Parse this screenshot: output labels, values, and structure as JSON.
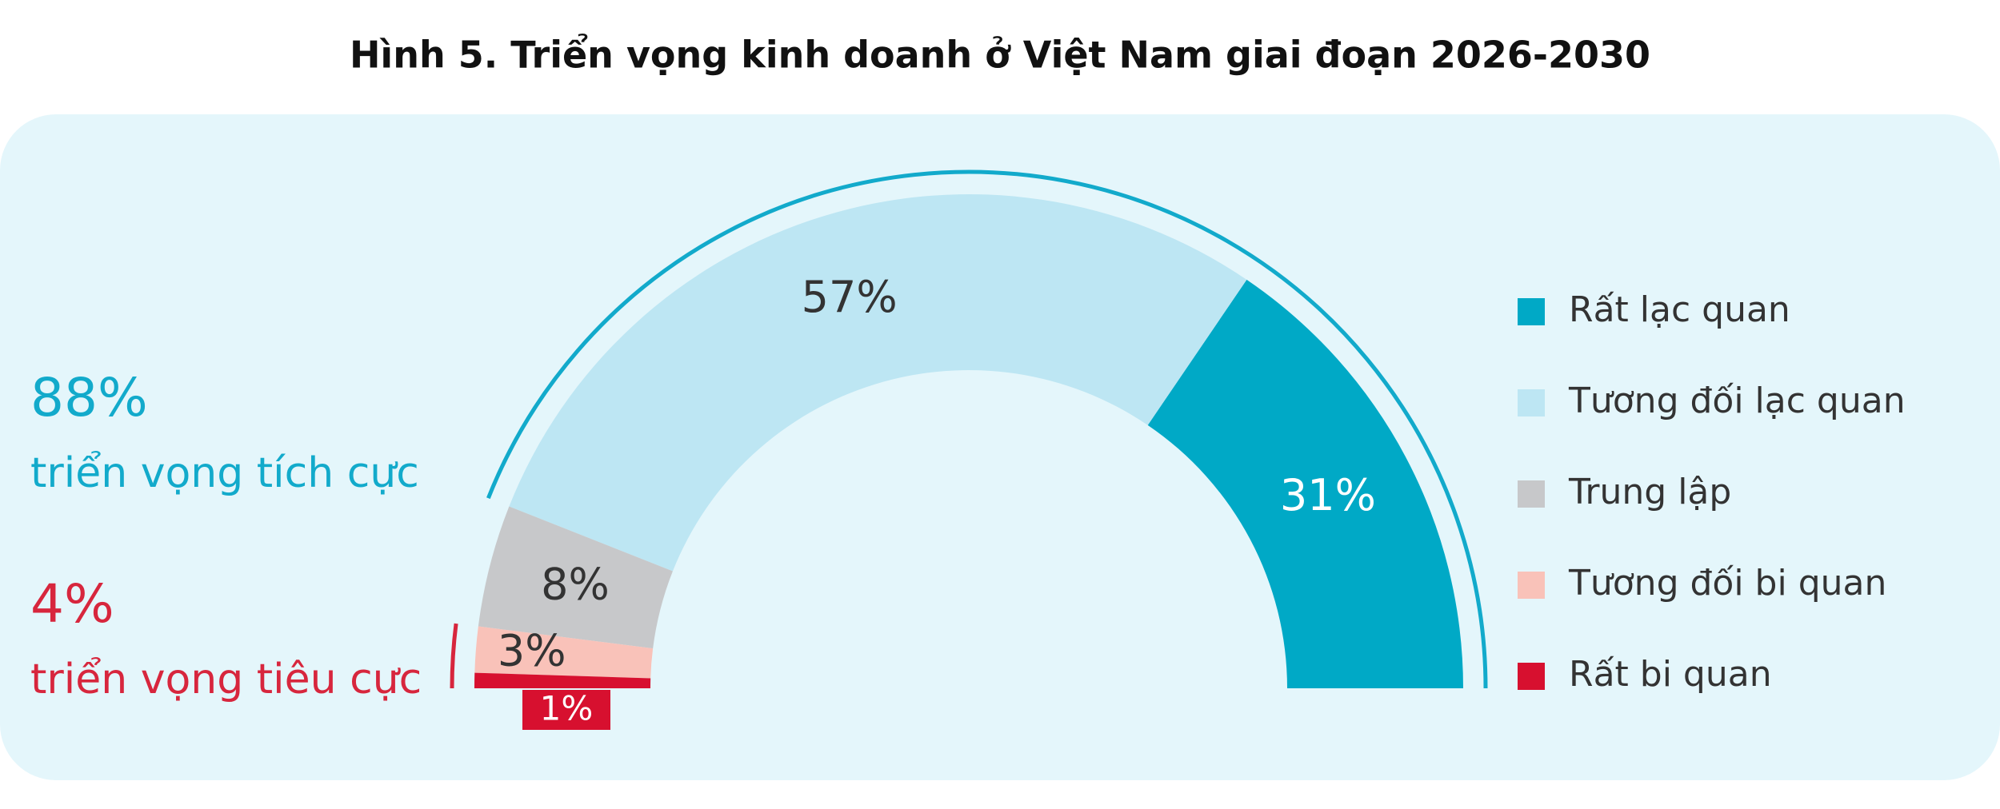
{
  "chart_data": {
    "type": "semi-donut",
    "title": "Hình 5. Triển vọng kinh doanh ở Việt Nam giai đoạn 2026-2030",
    "categories": [
      "Rất lạc quan",
      "Tương đối lạc quan",
      "Trung lập",
      "Tương đối bi quan",
      "Rất bi quan"
    ],
    "values": [
      31,
      57,
      8,
      3,
      1
    ],
    "value_labels": [
      "31%",
      "57%",
      "8%",
      "3%",
      "1%"
    ],
    "colors": [
      "#00a9c6",
      "#bde6f3",
      "#c7c8ca",
      "#f9c2b9",
      "#d7102f"
    ],
    "summaries": [
      {
        "value": 88,
        "label": "88%",
        "text": "triển vọng tích cực",
        "color": "#12aacb"
      },
      {
        "value": 4,
        "label": "4%",
        "text": "triển vọng tiêu cực",
        "color": "#d7263d"
      }
    ]
  }
}
